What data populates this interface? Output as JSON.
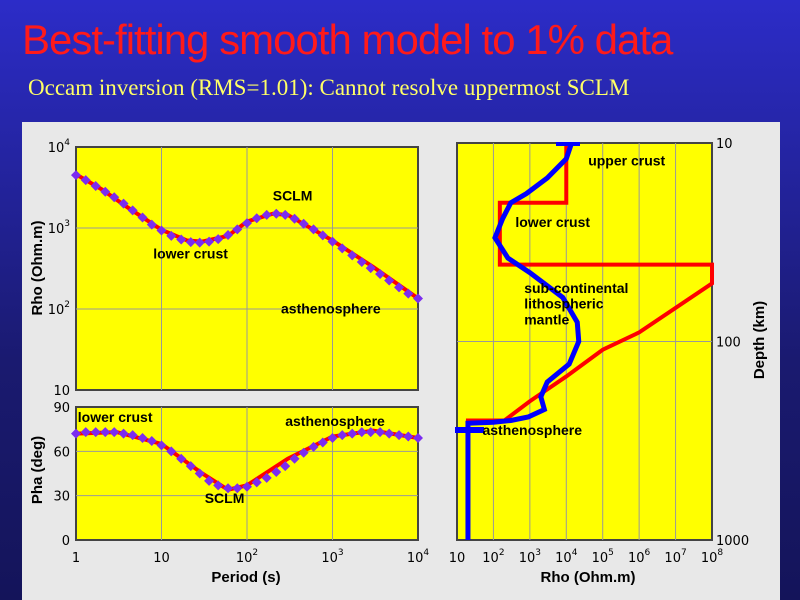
{
  "title": "Best-fitting smooth model to 1% data",
  "subtitle": "Occam inversion (RMS=1.01): Cannot resolve uppermost SCLM",
  "colors": {
    "plot_bg": "#ffff00",
    "model": "#ff0000",
    "inversion": "#0000ff",
    "data": "#8a2be2"
  },
  "chart_data": [
    {
      "type": "line",
      "name": "apparent-resistivity",
      "ylabel": "Rho (Ohm.m)",
      "xlabel": "Period (s)",
      "xscale": "log",
      "yscale": "log",
      "xlim": [
        1,
        10000
      ],
      "ylim": [
        10,
        10000
      ],
      "yticks": [
        {
          "base": "10",
          "exp": "4",
          "v": 10000
        },
        {
          "base": "10",
          "exp": "3",
          "v": 1000
        },
        {
          "base": "10",
          "exp": "2",
          "v": 100
        },
        {
          "base": "10",
          "exp": "",
          "v": 10
        }
      ],
      "annotations": [
        {
          "text": "SCLM",
          "x": 200,
          "y": 2200
        },
        {
          "text": "lower crust",
          "x": 8,
          "y": 420
        },
        {
          "text": "asthenosphere",
          "x": 250,
          "y": 88
        }
      ],
      "series": [
        {
          "name": "data",
          "marker": "diamond",
          "x": [
            1,
            1.3,
            1.7,
            2.2,
            2.8,
            3.6,
            4.6,
            6,
            7.7,
            10,
            13,
            17,
            22,
            28,
            36,
            46,
            60,
            77,
            100,
            130,
            170,
            220,
            280,
            360,
            460,
            600,
            770,
            1000,
            1300,
            1700,
            2200,
            2800,
            3600,
            4600,
            6000,
            7700,
            10000
          ],
          "y": [
            4500,
            3900,
            3300,
            2800,
            2400,
            2000,
            1650,
            1350,
            1100,
            930,
            800,
            720,
            670,
            660,
            680,
            730,
            820,
            960,
            1150,
            1320,
            1450,
            1500,
            1450,
            1300,
            1130,
            960,
            810,
            680,
            560,
            460,
            380,
            320,
            270,
            225,
            185,
            155,
            135
          ]
        },
        {
          "name": "model response",
          "x": [
            1,
            2,
            4,
            10,
            20,
            30,
            60,
            100,
            200,
            300,
            1000,
            3000,
            10000
          ],
          "y": [
            4600,
            3000,
            1800,
            950,
            700,
            680,
            800,
            1200,
            1500,
            1450,
            700,
            330,
            135
          ]
        }
      ]
    },
    {
      "type": "line",
      "name": "phase",
      "ylabel": "Pha (deg)",
      "xlabel": "Period (s)",
      "xscale": "log",
      "xlim": [
        1,
        10000
      ],
      "ylim": [
        0,
        90
      ],
      "yticks": [
        {
          "base": "90",
          "v": 90
        },
        {
          "base": "60",
          "v": 60
        },
        {
          "base": "30",
          "v": 30
        },
        {
          "base": "0",
          "v": 0
        }
      ],
      "xticks": [
        {
          "base": "1",
          "exp": "",
          "v": 1
        },
        {
          "base": "10",
          "exp": "",
          "v": 10
        },
        {
          "base": "10",
          "exp": "2",
          "v": 100
        },
        {
          "base": "10",
          "exp": "3",
          "v": 1000
        },
        {
          "base": "10",
          "exp": "4",
          "v": 10000
        }
      ],
      "annotations": [
        {
          "text": "lower crust",
          "x": 1.05,
          "y": 80
        },
        {
          "text": "asthenosphere",
          "x": 280,
          "y": 77
        },
        {
          "text": "SCLM",
          "x": 32,
          "y": 25
        }
      ],
      "series": [
        {
          "name": "data",
          "marker": "diamond",
          "x": [
            1,
            1.3,
            1.7,
            2.2,
            2.8,
            3.6,
            4.6,
            6,
            7.7,
            10,
            13,
            17,
            22,
            28,
            36,
            46,
            60,
            77,
            100,
            130,
            170,
            220,
            280,
            360,
            460,
            600,
            770,
            1000,
            1300,
            1700,
            2200,
            2800,
            3600,
            4600,
            6000,
            7700,
            10000
          ],
          "y": [
            72,
            73,
            73,
            73,
            73,
            72,
            71,
            69,
            67,
            64,
            60,
            55,
            50,
            45,
            40,
            37,
            35,
            35,
            36,
            39,
            42,
            46,
            50,
            55,
            59,
            63,
            66,
            69,
            71,
            72,
            73,
            73,
            73,
            72,
            71,
            70,
            69
          ]
        },
        {
          "name": "model response",
          "x": [
            1,
            3,
            10,
            30,
            60,
            100,
            300,
            1000,
            3000,
            10000
          ],
          "y": [
            72,
            73,
            65,
            45,
            34,
            37,
            55,
            70,
            74,
            69
          ]
        }
      ]
    },
    {
      "type": "line",
      "name": "resistivity-depth-model",
      "xlabel": "Rho (Ohm.m)",
      "ylabel": "Depth (km)",
      "xscale": "log",
      "yscale": "log",
      "xlim": [
        10,
        100000000
      ],
      "ylim": [
        10,
        1000
      ],
      "xticks": [
        {
          "base": "10",
          "exp": "",
          "v": 10
        },
        {
          "base": "10",
          "exp": "2",
          "v": 100
        },
        {
          "base": "10",
          "exp": "3",
          "v": 1000
        },
        {
          "base": "10",
          "exp": "4",
          "v": 10000
        },
        {
          "base": "10",
          "exp": "5",
          "v": 100000
        },
        {
          "base": "10",
          "exp": "6",
          "v": 1000000
        },
        {
          "base": "10",
          "exp": "7",
          "v": 10000000
        },
        {
          "base": "10",
          "exp": "8",
          "v": 100000000
        }
      ],
      "yticks": [
        {
          "base": "10",
          "v": 10
        },
        {
          "base": "100",
          "v": 100
        },
        {
          "base": "1000",
          "v": 1000
        }
      ],
      "annotations": [
        {
          "text": "upper crust",
          "x": 40000,
          "y": 13
        },
        {
          "text": "lower crust",
          "x": 400,
          "y": 26.5
        },
        {
          "text": "sub-continental",
          "x": 700,
          "y": 57
        },
        {
          "text": "lithospheric",
          "x": 700,
          "y": 68
        },
        {
          "text": "mantle",
          "x": 700,
          "y": 82
        },
        {
          "text": "asthenosphere",
          "x": 50,
          "y": 295
        }
      ],
      "series": [
        {
          "name": "true model",
          "x": [
            10000,
            10000,
            150,
            150,
            100000000,
            100000000,
            1000000,
            100000,
            10000,
            1000,
            200,
            20,
            20
          ],
          "y": [
            10,
            20,
            20,
            41,
            41,
            51,
            90,
            110,
            150,
            200,
            250,
            250,
            1000
          ]
        },
        {
          "name": "Occam inversion",
          "x": [
            14000,
            10000,
            3000,
            800,
            300,
            180,
            110,
            250,
            1000,
            8000,
            20000,
            22000,
            12000,
            3000,
            2000,
            2500,
            900,
            300,
            100,
            20,
            20
          ],
          "y": [
            10,
            12,
            15,
            18,
            20,
            24,
            30,
            38,
            45,
            60,
            80,
            100,
            130,
            160,
            190,
            220,
            240,
            250,
            255,
            258,
            1000
          ]
        }
      ]
    }
  ]
}
